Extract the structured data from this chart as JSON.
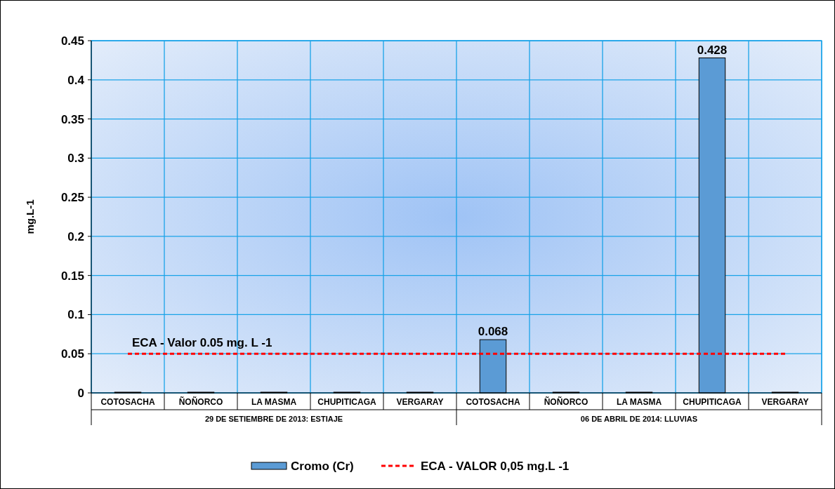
{
  "chart_data": {
    "type": "bar",
    "ylabel": "mg.L-1",
    "categories": [
      "COTOSACHA",
      "ÑOÑORCO",
      "LA MASMA",
      "CHUPITICAGA",
      "VERGARAY",
      "COTOSACHA",
      "ÑOÑORCO",
      "LA MASMA",
      "CHUPITICAGA",
      "VERGARAY"
    ],
    "series": [
      {
        "name": "Cromo (Cr)",
        "color": "#5b9bd5",
        "values": [
          0,
          0,
          0,
          0,
          0,
          0.068,
          0,
          0,
          0.428,
          0
        ],
        "value_labels": [
          null,
          null,
          null,
          null,
          null,
          "0.068",
          null,
          null,
          "0.428",
          null
        ]
      },
      {
        "name": "ECA - VALOR 0,05 mg.L -1",
        "type": "line",
        "color": "#ff0000",
        "line_style": "dashed",
        "values": [
          0.05,
          0.05,
          0.05,
          0.05,
          0.05,
          0.05,
          0.05,
          0.05,
          0.05,
          0.05
        ]
      }
    ],
    "annotations": [
      "29 DE SETIEMBRE DE 2013: ESTIAJE",
      "06 DE ABRIL DE 2014: LLUVIAS",
      {
        "text": "ECA - Valor 0.05 mg. L -1",
        "y": 0.05
      }
    ],
    "ylim": [
      0,
      0.45
    ],
    "yticks": [
      0,
      0.05,
      0.1,
      0.15,
      0.2,
      0.25,
      0.3,
      0.35,
      0.4,
      0.45
    ],
    "grid": true,
    "legend": "bottom"
  }
}
